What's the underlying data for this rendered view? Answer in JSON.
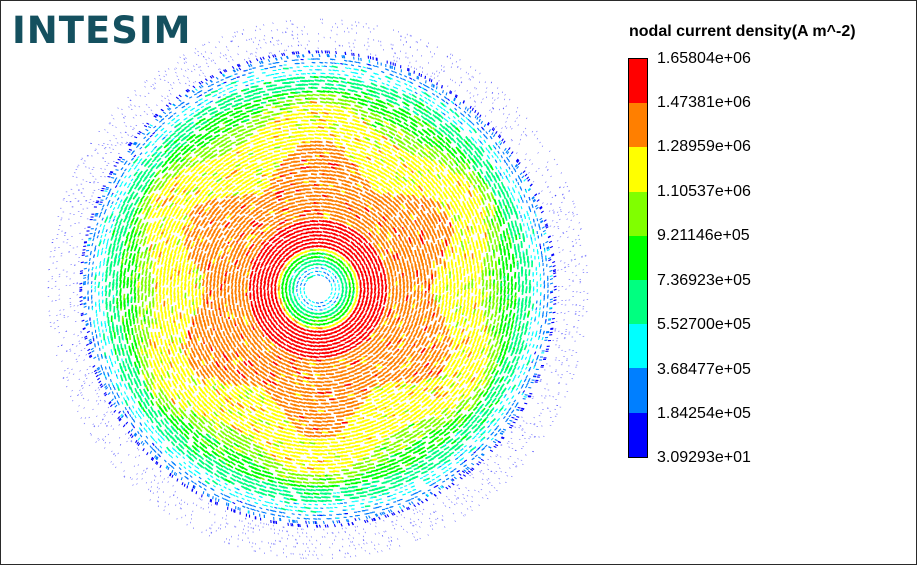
{
  "logo": {
    "text": "INTESIM",
    "color": "#14505f"
  },
  "legend": {
    "title": "nodal current density(A m^-2)",
    "ticks": [
      "1.65804e+06",
      "1.47381e+06",
      "1.28959e+06",
      "1.10537e+06",
      "9.21146e+05",
      "7.36923e+05",
      "5.52700e+05",
      "3.68477e+05",
      "1.84254e+05",
      "3.09293e+01"
    ],
    "colors": [
      "#ff0000",
      "#ff7f00",
      "#ffff00",
      "#80ff00",
      "#00ff00",
      "#00ff80",
      "#00ffff",
      "#007fff",
      "#0000ff"
    ]
  }
}
